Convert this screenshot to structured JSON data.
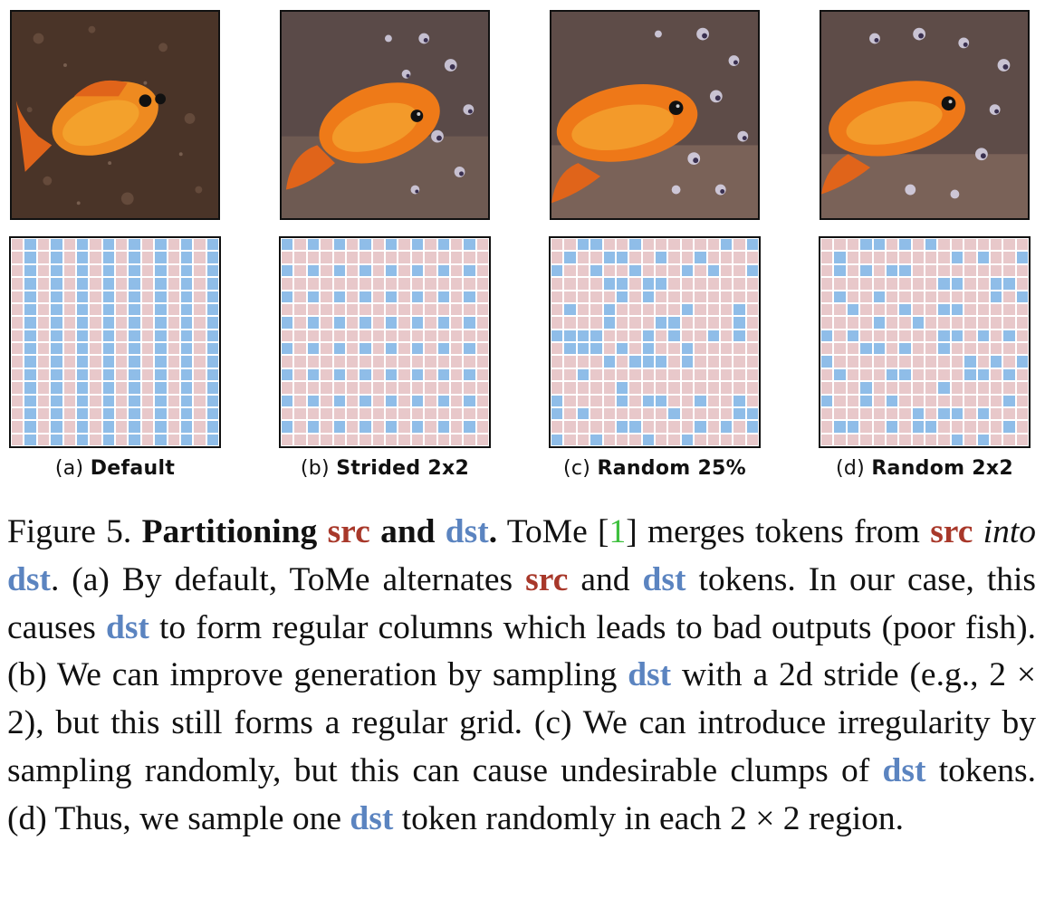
{
  "panels": [
    {
      "id": "a",
      "letter": "(a)",
      "name": "Default",
      "pattern": "default"
    },
    {
      "id": "b",
      "letter": "(b)",
      "name": "Strided 2x2",
      "pattern": "strided"
    },
    {
      "id": "c",
      "letter": "(c)",
      "name": "Random 25%",
      "pattern": "random"
    },
    {
      "id": "d",
      "letter": "(d)",
      "name": "Random 2x2",
      "pattern": "random2x2"
    }
  ],
  "grid": {
    "size": 16,
    "src_color": "#e8c8ca",
    "dst_color": "#8fbde8"
  },
  "caption": {
    "figure_label": "Figure 5.",
    "title_bold": "Partitioning",
    "src": "src",
    "and": "and",
    "dst": "dst",
    "title_end": ".",
    "s1a": "ToMe [",
    "ref": "1",
    "s1b": "] merges tokens from",
    "into": "into",
    "s2": ". (a) By default, ToMe alternates",
    "and2": "and",
    "s3": "tokens. In our case, this causes",
    "s4": "to form regular columns which leads to bad outputs (poor fish). (b) We can improve generation by sampling",
    "s5": "with a 2d stride (e.g., 2 × 2), but this still forms a regular grid. (c) We can introduce irregularity by sampling randomly, but this can cause undesirable clumps of",
    "s6": "tokens. (d) Thus, we sample one",
    "s7": "token randomly in each 2 × 2 region."
  },
  "colors": {
    "src": "#a8382a",
    "dst": "#5b84c0",
    "ref": "#3ec03e"
  }
}
